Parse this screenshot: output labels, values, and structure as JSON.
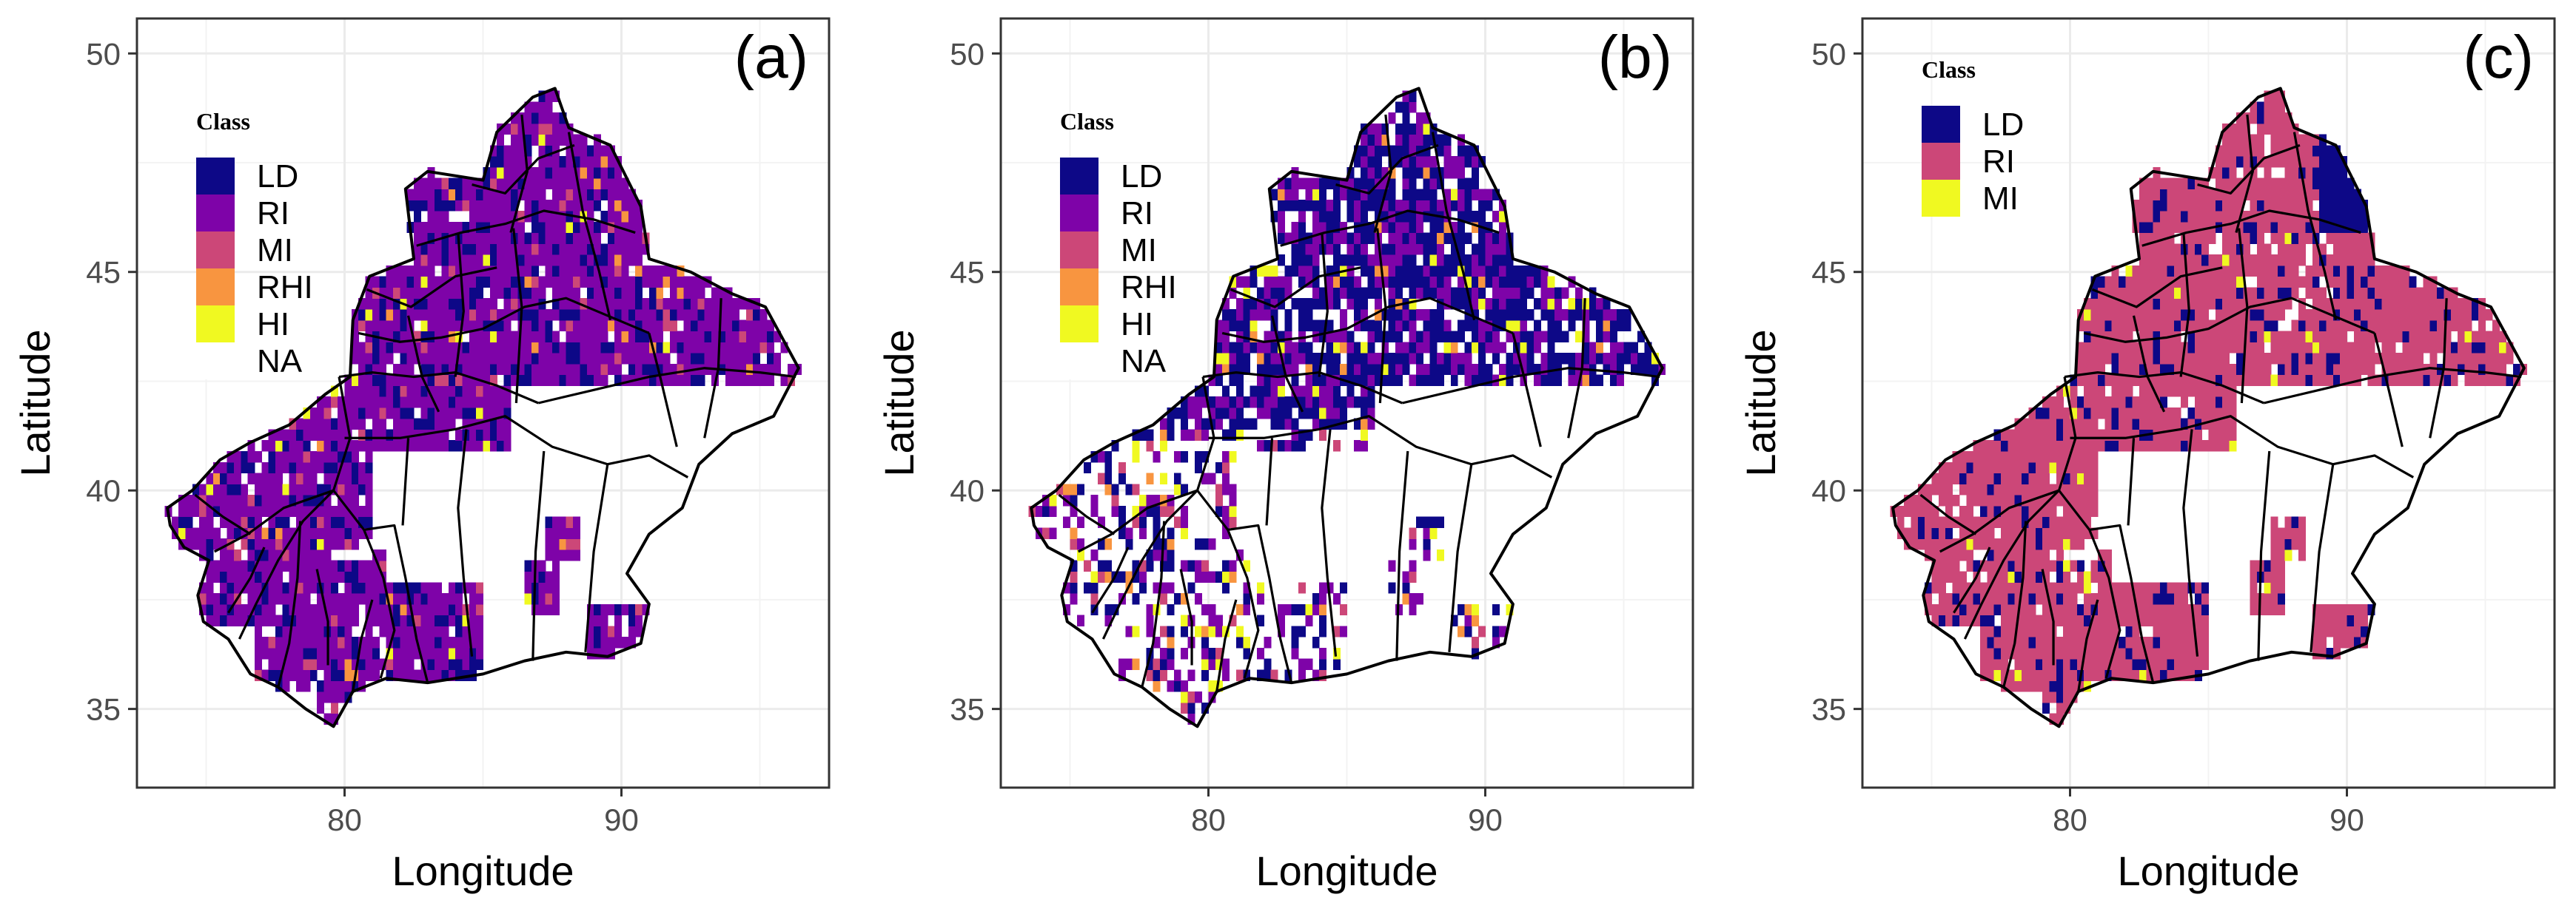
{
  "figure": {
    "x_axis_label": "Longitude",
    "y_axis_label": "Latitude",
    "x_ticks": [
      "80",
      "90"
    ],
    "y_ticks": [
      "35",
      "40",
      "45",
      "50"
    ],
    "x_range": [
      72.5,
      97.5
    ],
    "y_range": [
      33.2,
      50.8
    ],
    "legend_title": "Class"
  },
  "panels": [
    {
      "label": "(a)",
      "legend": [
        {
          "label": "LD",
          "color": "#0d0887"
        },
        {
          "label": "RI",
          "color": "#7e03a8"
        },
        {
          "label": "MI",
          "color": "#cc4778"
        },
        {
          "label": "RHI",
          "color": "#f89540"
        },
        {
          "label": "HI",
          "color": "#f0f921"
        },
        {
          "label": "NA",
          "color": "#ffffff"
        }
      ],
      "dominant_class": "RI",
      "secondary_class": "LD"
    },
    {
      "label": "(b)",
      "legend": [
        {
          "label": "LD",
          "color": "#0d0887"
        },
        {
          "label": "RI",
          "color": "#7e03a8"
        },
        {
          "label": "MI",
          "color": "#cc4778"
        },
        {
          "label": "RHI",
          "color": "#f89540"
        },
        {
          "label": "HI",
          "color": "#f0f921"
        },
        {
          "label": "NA",
          "color": "#ffffff"
        }
      ],
      "dominant_class": "LD",
      "secondary_class": "RI"
    },
    {
      "label": "(c)",
      "legend": [
        {
          "label": "LD",
          "color": "#0d0887"
        },
        {
          "label": "RI",
          "color": "#cc4778"
        },
        {
          "label": "MI",
          "color": "#f0f921"
        }
      ],
      "dominant_class": "RI",
      "secondary_class": "LD"
    }
  ],
  "colors": {
    "grid": "#ebebeb",
    "frame": "#333333",
    "boundary": "#000000",
    "tick_text": "#4d4d4d"
  }
}
